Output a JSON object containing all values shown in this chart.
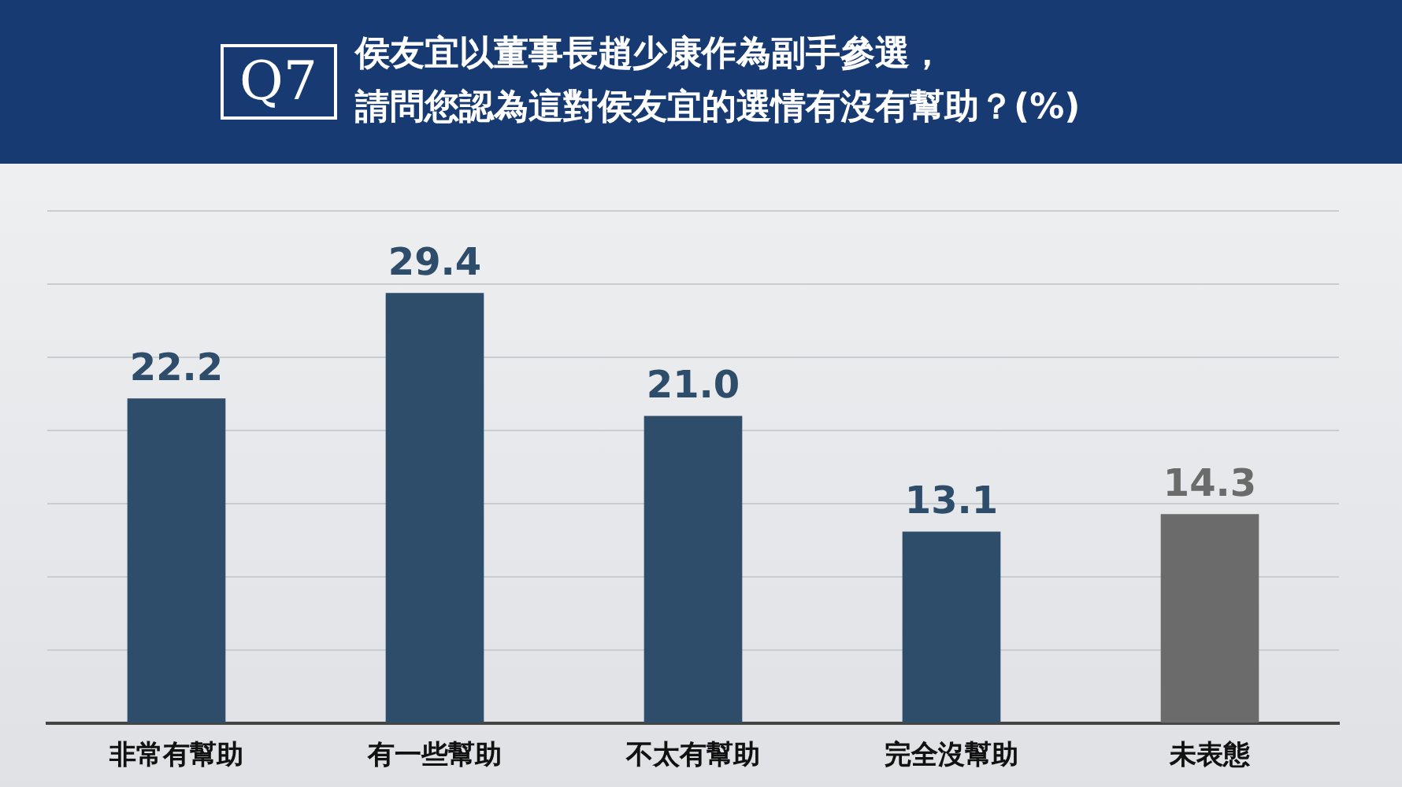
{
  "chart_data": {
    "type": "bar",
    "title": "侯友宜以董事長趙少康作為副手參選，請問您認為這對侯友宜的選情有沒有幫助？(%)",
    "annotations": [
      "Q7"
    ],
    "categories": [
      "非常有幫助",
      "有一些幫助",
      "不太有幫助",
      "完全沒幫助",
      "未表態"
    ],
    "values": [
      22.2,
      29.4,
      21.0,
      13.1,
      14.3
    ],
    "colors": [
      "#2e4d6b",
      "#2e4d6b",
      "#2e4d6b",
      "#2e4d6b",
      "#6b6b6b"
    ],
    "value_labels": [
      "22.2",
      "29.4",
      "21.0",
      "13.1",
      "14.3"
    ],
    "ylim": [
      0,
      35
    ],
    "yticks": [
      {
        "value": 0,
        "label": null
      },
      {
        "value": 5,
        "label": null
      },
      {
        "value": 10,
        "label": null
      },
      {
        "value": 15,
        "label": null
      },
      {
        "value": 20,
        "label": null
      },
      {
        "value": 25,
        "label": null
      },
      {
        "value": 30,
        "label": null
      },
      {
        "value": 35,
        "label": null
      }
    ],
    "grid": "y",
    "tick_labels": "x"
  }
}
